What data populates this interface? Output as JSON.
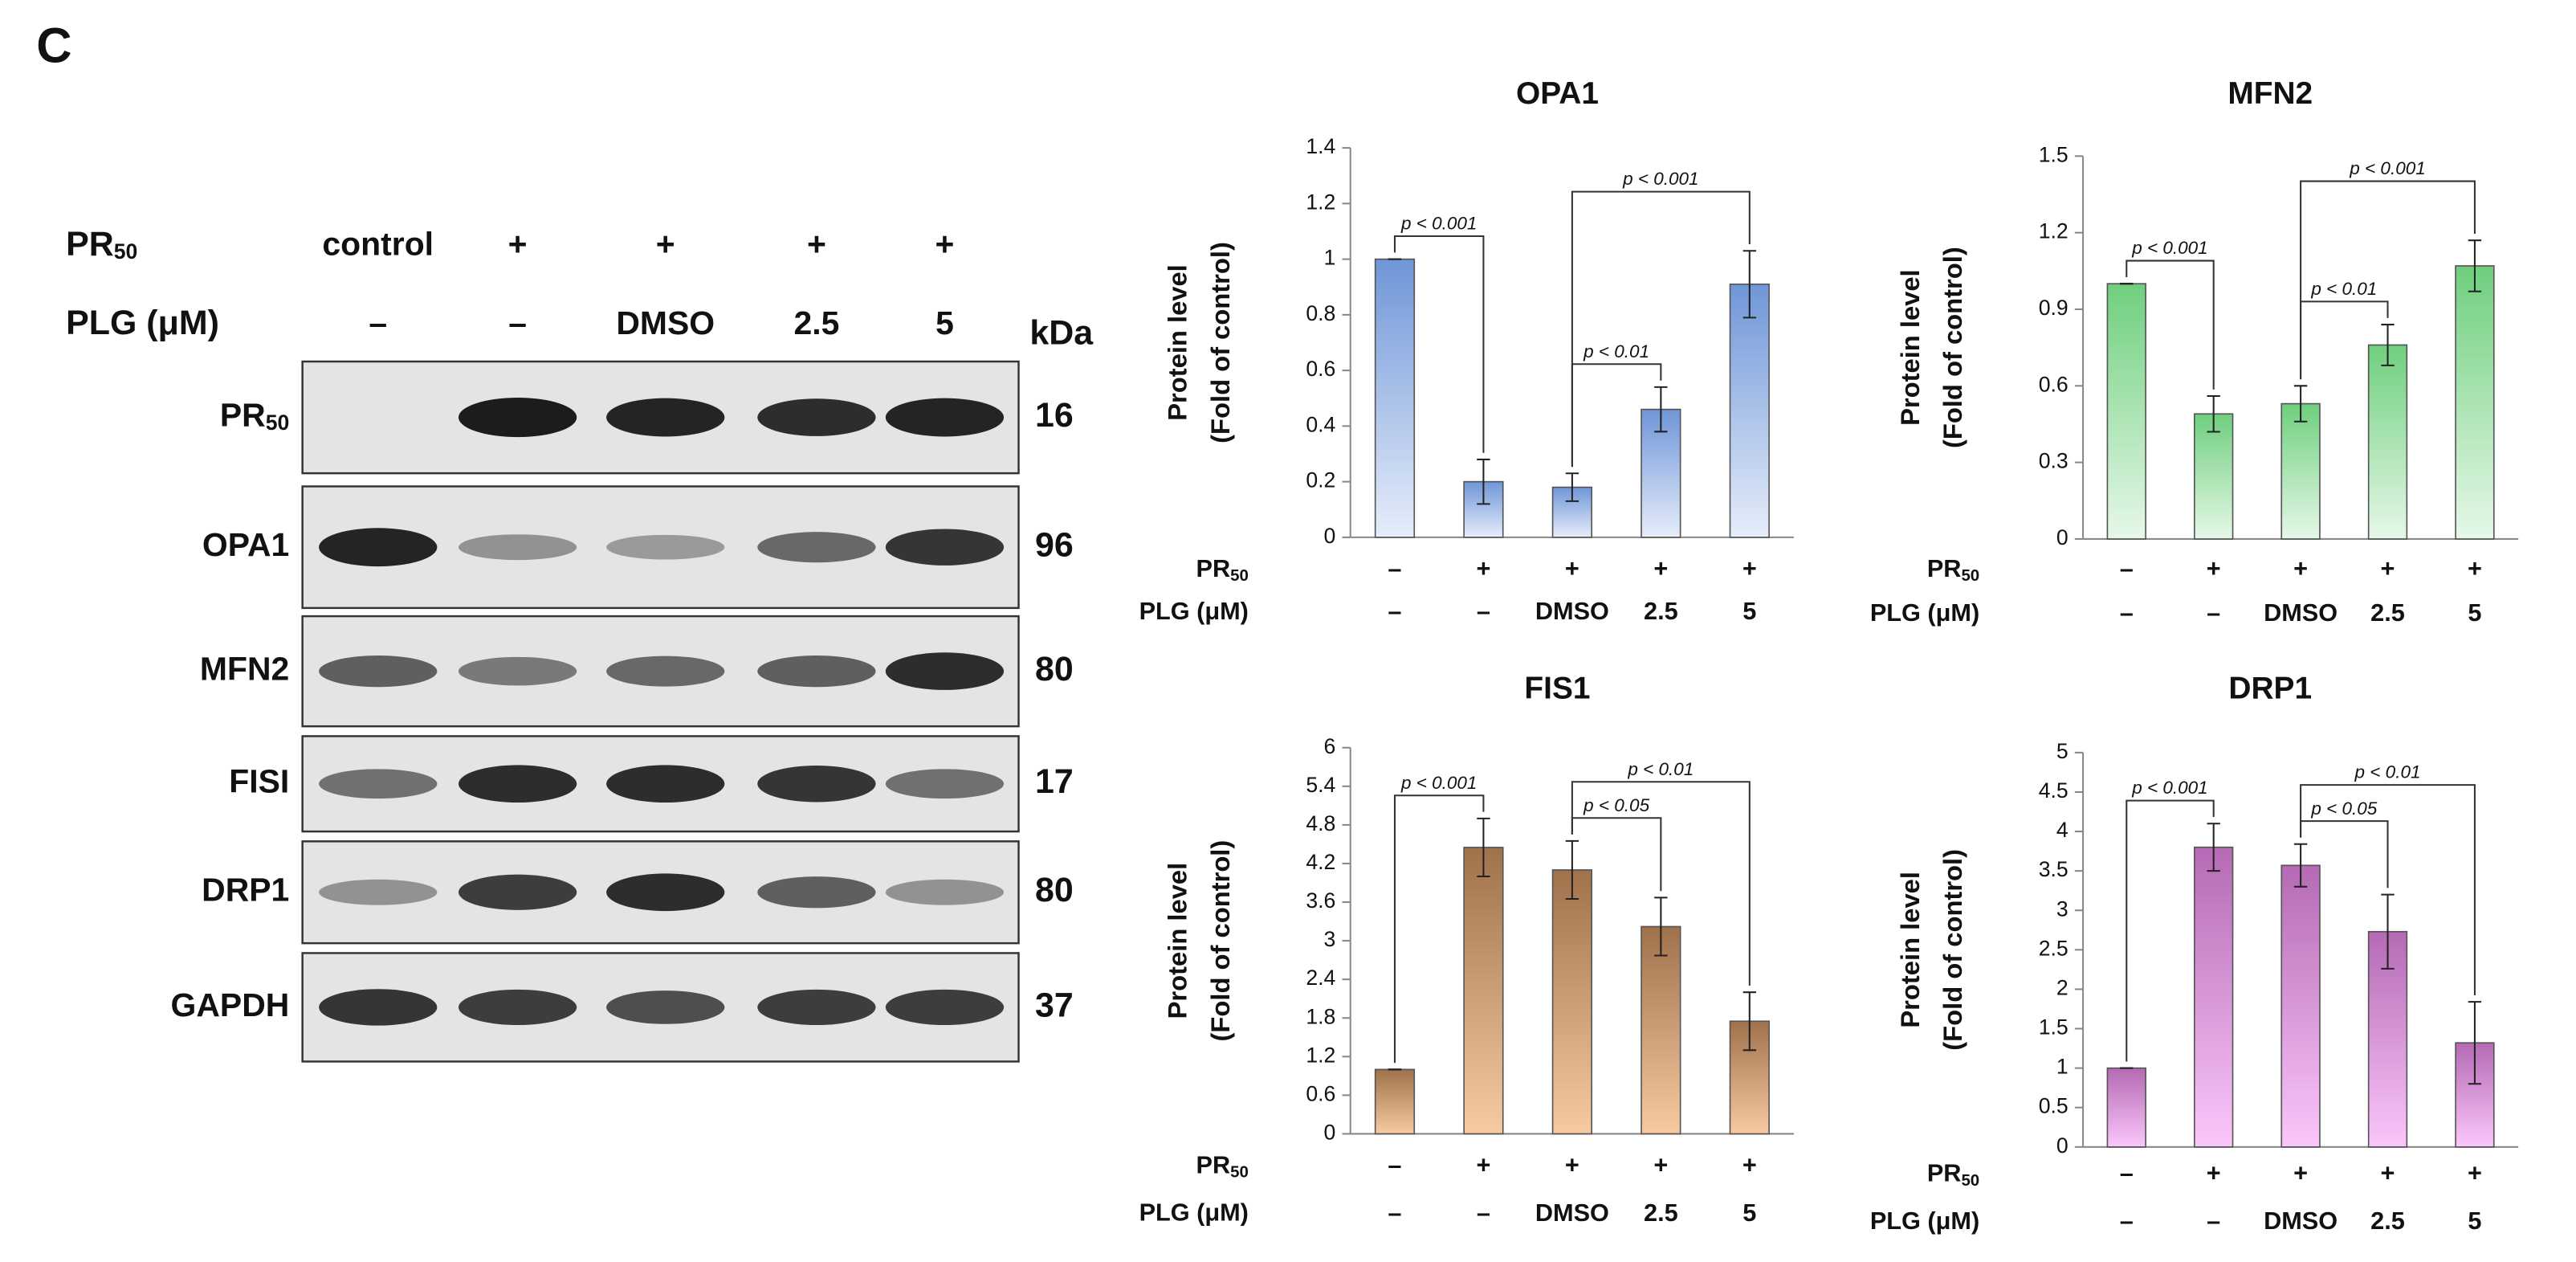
{
  "panel_label": "C",
  "blot": {
    "treatment_rows": [
      {
        "label": "PR",
        "label_sub": "50",
        "values": [
          "control",
          "+",
          "+",
          "+",
          "+"
        ]
      },
      {
        "label": "PLG (μM)",
        "values": [
          "–",
          "–",
          "DMSO",
          "2.5",
          "5"
        ]
      }
    ],
    "kda_header": "kDa",
    "bands": [
      {
        "label": "PR",
        "label_sub": "50",
        "kda": "16"
      },
      {
        "label": "OPA1",
        "kda": "96"
      },
      {
        "label": "MFN2",
        "kda": "80"
      },
      {
        "label": "FISI",
        "kda": "17"
      },
      {
        "label": "DRP1",
        "kda": "80"
      },
      {
        "label": "GAPDH",
        "kda": "37"
      }
    ]
  },
  "chart_data": [
    {
      "type": "bar",
      "title": "OPA1",
      "y_label": [
        "Protein level",
        "(Fold of control)"
      ],
      "row_labels": [
        {
          "text": "PR",
          "sub": "50"
        },
        {
          "text": "PLG (μM)"
        }
      ],
      "categories": [
        [
          "–",
          "–"
        ],
        [
          "+",
          "–"
        ],
        [
          "+",
          "DMSO"
        ],
        [
          "+",
          "2.5"
        ],
        [
          "+",
          "5"
        ]
      ],
      "values": [
        1,
        0.2,
        0.18,
        0.46,
        0.91
      ],
      "errors": [
        0,
        0.08,
        0.05,
        0.08,
        0.12
      ],
      "color": "#6f96d8",
      "color_end": "#e6edfa",
      "ylim": [
        0,
        1.4
      ],
      "yticks": [
        0,
        0.2,
        0.4,
        0.6,
        0.8,
        1,
        1.2,
        1.4
      ],
      "comparisons": [
        {
          "bars": [
            0,
            1
          ],
          "label": "p < 0.001"
        },
        {
          "bars": [
            2,
            3
          ],
          "label": "p < 0.01"
        },
        {
          "bars": [
            2,
            4
          ],
          "label": "p < 0.001"
        }
      ]
    },
    {
      "type": "bar",
      "title": "MFN2",
      "y_label": [
        "Protein level",
        "(Fold of control)"
      ],
      "row_labels": [
        {
          "text": "PR",
          "sub": "50"
        },
        {
          "text": "PLG (μM)"
        }
      ],
      "categories": [
        [
          "–",
          "–"
        ],
        [
          "+",
          "–"
        ],
        [
          "+",
          "DMSO"
        ],
        [
          "+",
          "2.5"
        ],
        [
          "+",
          "5"
        ]
      ],
      "values": [
        1,
        0.49,
        0.53,
        0.76,
        1.07
      ],
      "errors": [
        0,
        0.07,
        0.07,
        0.08,
        0.1
      ],
      "color": "#6fcf7e",
      "color_end": "#e6f8e8",
      "ylim": [
        0,
        1.5
      ],
      "yticks": [
        0,
        0.3,
        0.6,
        0.9,
        1.2,
        1.5
      ],
      "comparisons": [
        {
          "bars": [
            0,
            1
          ],
          "label": "p < 0.001"
        },
        {
          "bars": [
            2,
            3
          ],
          "label": "p < 0.01"
        },
        {
          "bars": [
            2,
            4
          ],
          "label": "p < 0.001"
        }
      ]
    },
    {
      "type": "bar",
      "title": "FIS1",
      "y_label": [
        "Protein level",
        "(Fold of control)"
      ],
      "row_labels": [
        {
          "text": "PR",
          "sub": "50"
        },
        {
          "text": "PLG (μM)"
        }
      ],
      "categories": [
        [
          "–",
          "–"
        ],
        [
          "+",
          "–"
        ],
        [
          "+",
          "DMSO"
        ],
        [
          "+",
          "2.5"
        ],
        [
          "+",
          "5"
        ]
      ],
      "values": [
        1,
        4.45,
        4.1,
        3.22,
        1.75
      ],
      "errors": [
        0,
        0.45,
        0.45,
        0.45,
        0.45
      ],
      "color": "#a0724c",
      "color_end": "#f8caa2",
      "ylim": [
        0,
        6
      ],
      "yticks": [
        0,
        0.6,
        1.2,
        1.8,
        2.4,
        3,
        3.6,
        4.2,
        4.8,
        5.4,
        6
      ],
      "comparisons": [
        {
          "bars": [
            0,
            1
          ],
          "label": "p < 0.001"
        },
        {
          "bars": [
            2,
            3
          ],
          "label": "p < 0.05"
        },
        {
          "bars": [
            2,
            4
          ],
          "label": "p < 0.01"
        }
      ]
    },
    {
      "type": "bar",
      "title": "DRP1",
      "y_label": [
        "Protein level",
        "(Fold of control)"
      ],
      "row_labels": [
        {
          "text": "PR",
          "sub": "50"
        },
        {
          "text": "PLG (μM)"
        }
      ],
      "categories": [
        [
          "–",
          "–"
        ],
        [
          "+",
          "–"
        ],
        [
          "+",
          "DMSO"
        ],
        [
          "+",
          "2.5"
        ],
        [
          "+",
          "5"
        ]
      ],
      "values": [
        1,
        3.8,
        3.57,
        2.73,
        1.32
      ],
      "errors": [
        0,
        0.3,
        0.27,
        0.47,
        0.52
      ],
      "color": "#b46ab4",
      "color_end": "#fbc6fb",
      "ylim": [
        0,
        5
      ],
      "yticks": [
        0,
        0.5,
        1,
        1.5,
        2,
        2.5,
        3,
        3.5,
        4,
        4.5,
        5
      ],
      "comparisons": [
        {
          "bars": [
            0,
            1
          ],
          "label": "p < 0.001"
        },
        {
          "bars": [
            2,
            3
          ],
          "label": "p < 0.05"
        },
        {
          "bars": [
            2,
            4
          ],
          "label": "p < 0.01"
        }
      ]
    }
  ]
}
